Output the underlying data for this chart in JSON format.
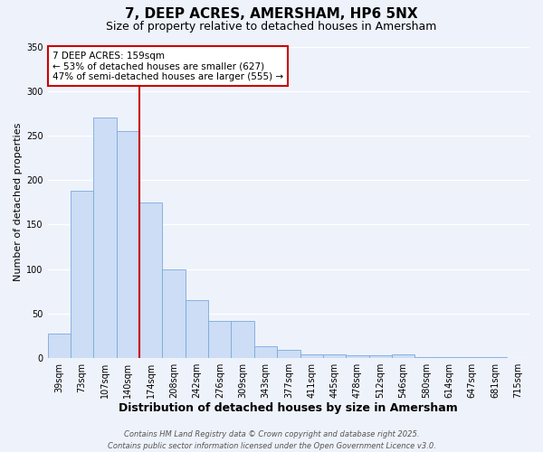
{
  "title": "7, DEEP ACRES, AMERSHAM, HP6 5NX",
  "subtitle": "Size of property relative to detached houses in Amersham",
  "xlabel": "Distribution of detached houses by size in Amersham",
  "ylabel": "Number of detached properties",
  "bins": [
    "39sqm",
    "73sqm",
    "107sqm",
    "140sqm",
    "174sqm",
    "208sqm",
    "242sqm",
    "276sqm",
    "309sqm",
    "343sqm",
    "377sqm",
    "411sqm",
    "445sqm",
    "478sqm",
    "512sqm",
    "546sqm",
    "580sqm",
    "614sqm",
    "647sqm",
    "681sqm",
    "715sqm"
  ],
  "values": [
    28,
    188,
    270,
    255,
    175,
    100,
    65,
    42,
    42,
    13,
    9,
    4,
    4,
    3,
    3,
    4,
    1,
    1,
    1,
    1,
    0
  ],
  "bar_color": "#ccddf5",
  "bar_edge_color": "#7aaadd",
  "vline_color": "#cc0000",
  "ylim": [
    0,
    350
  ],
  "yticks": [
    0,
    50,
    100,
    150,
    200,
    250,
    300,
    350
  ],
  "annotation_title": "7 DEEP ACRES: 159sqm",
  "annotation_line1": "← 53% of detached houses are smaller (627)",
  "annotation_line2": "47% of semi-detached houses are larger (555) →",
  "annotation_box_color": "#ffffff",
  "annotation_box_edge_color": "#cc0000",
  "footer1": "Contains HM Land Registry data © Crown copyright and database right 2025.",
  "footer2": "Contains public sector information licensed under the Open Government Licence v3.0.",
  "background_color": "#eef2fb",
  "grid_color": "#ffffff",
  "title_fontsize": 11,
  "subtitle_fontsize": 9,
  "xlabel_fontsize": 9,
  "ylabel_fontsize": 8,
  "tick_fontsize": 7,
  "annot_fontsize": 7.5,
  "footer_fontsize": 6
}
